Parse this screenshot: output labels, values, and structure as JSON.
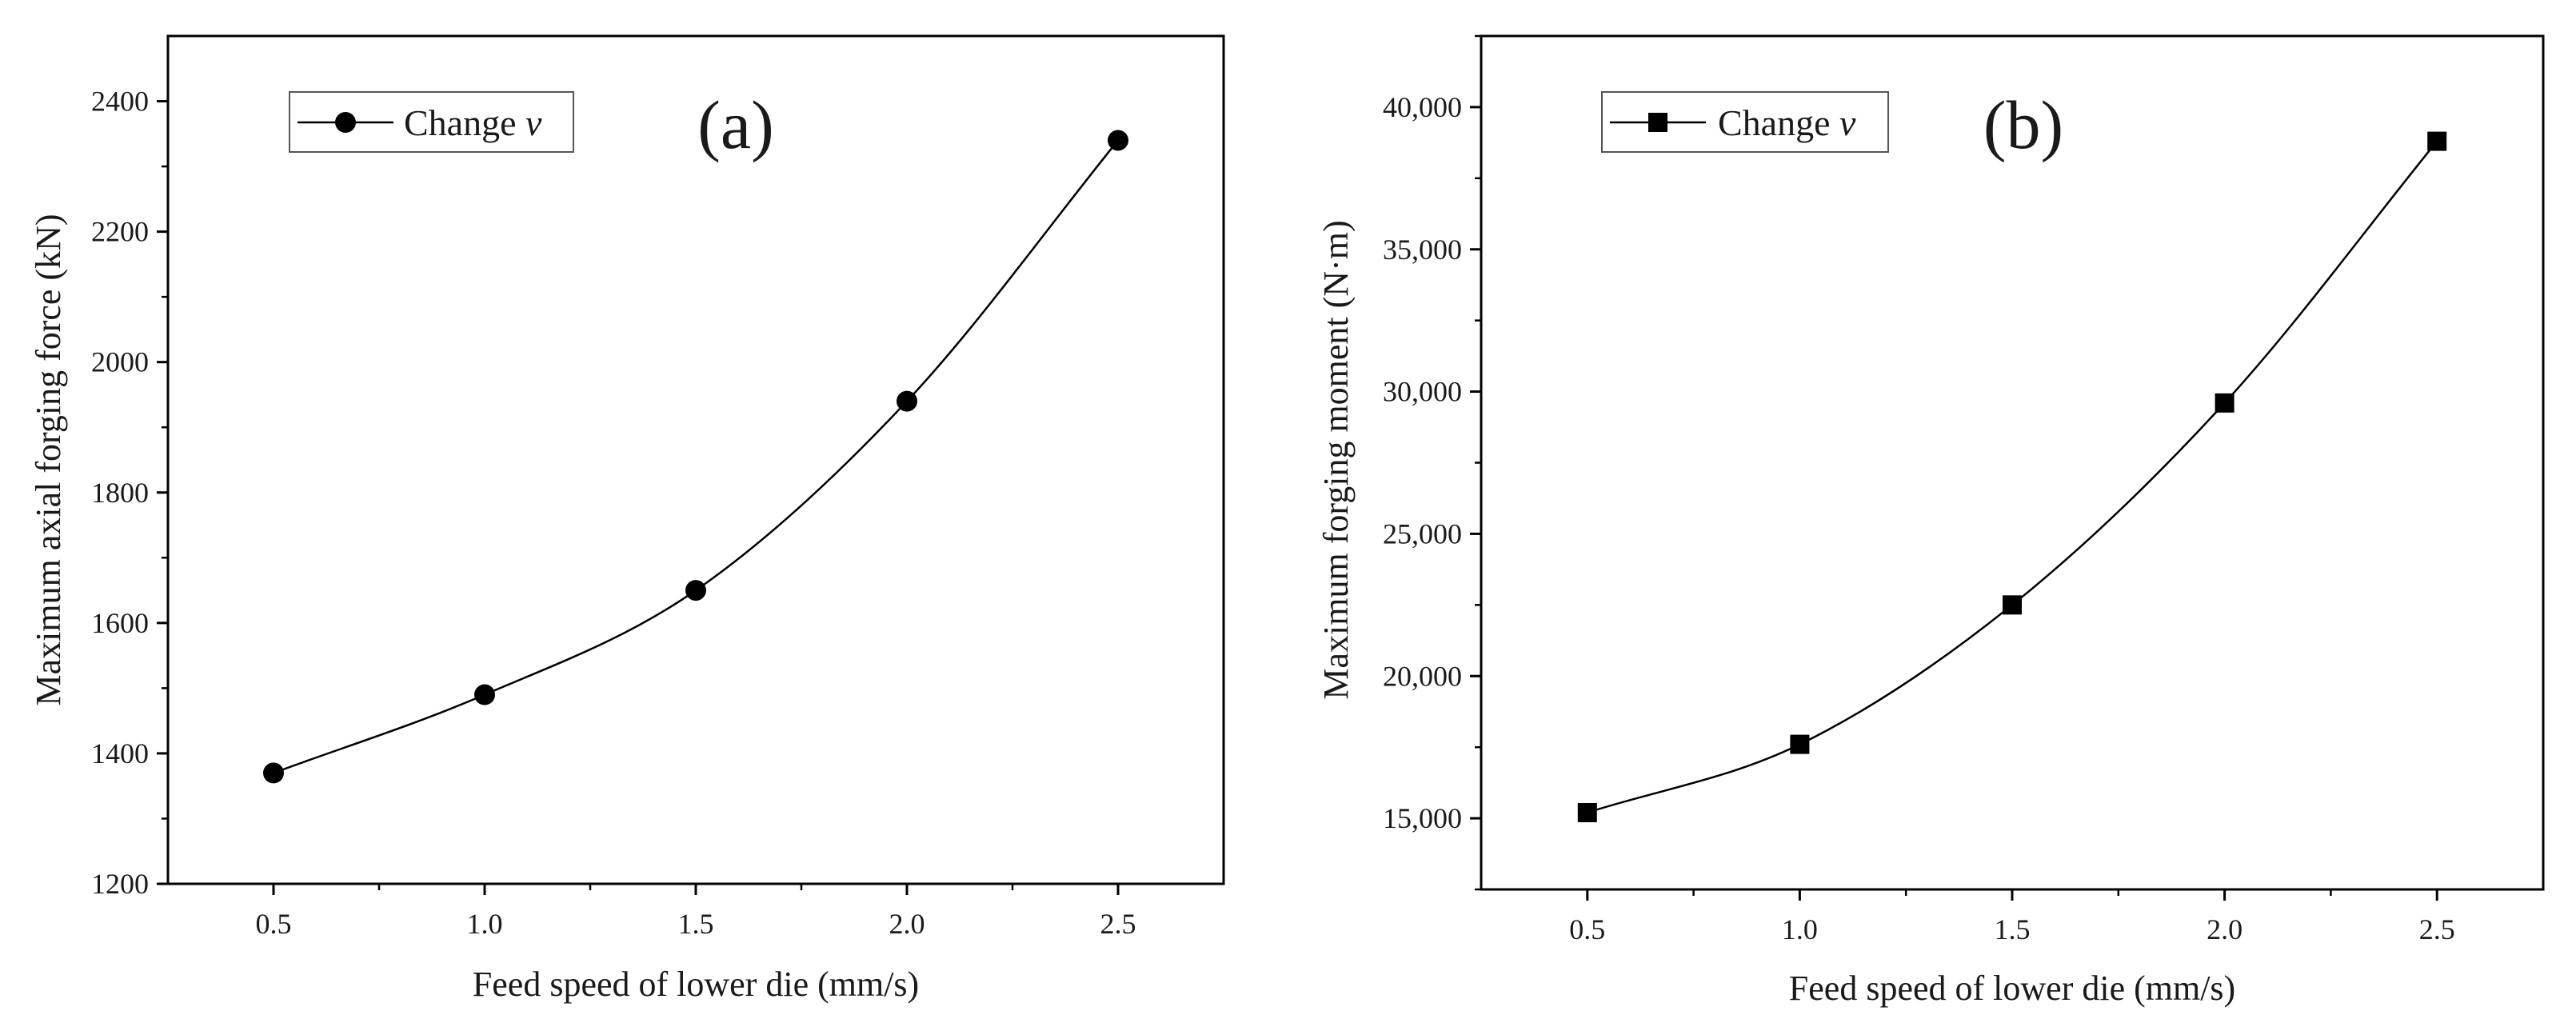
{
  "chart_data": [
    {
      "type": "line",
      "panel_label": "(a)",
      "title": "",
      "xlabel": "Feed speed of lower die (mm/s)",
      "ylabel": "Maximum axial forging force (kN)",
      "x": [
        0.5,
        1.0,
        1.5,
        2.0,
        2.5
      ],
      "x_tick_labels": [
        "0.5",
        "1.0",
        "1.5",
        "2.0",
        "2.5"
      ],
      "x_minor_ticks": [
        0.75,
        1.25,
        1.75,
        2.25
      ],
      "xlim": [
        0.25,
        2.75
      ],
      "ylim": [
        1200,
        2500
      ],
      "y_ticks": [
        1200,
        1400,
        1600,
        1800,
        2000,
        2200,
        2400
      ],
      "y_tick_labels": [
        "1200",
        "1400",
        "1600",
        "1800",
        "2000",
        "2200",
        "2400"
      ],
      "y_minor_ticks": [
        1300,
        1500,
        1700,
        1900,
        2100,
        2300
      ],
      "grid": false,
      "legend_position": "top-left",
      "series": [
        {
          "name": "Change",
          "name_variable": "v",
          "marker": "circle",
          "color": "#000000",
          "values": [
            1370,
            1490,
            1650,
            1940,
            2340
          ]
        }
      ]
    },
    {
      "type": "line",
      "panel_label": "(b)",
      "title": "",
      "xlabel": "Feed speed of lower die (mm/s)",
      "ylabel": "Maximum forging moment (N·m)",
      "x": [
        0.5,
        1.0,
        1.5,
        2.0,
        2.5
      ],
      "x_tick_labels": [
        "0.5",
        "1.0",
        "1.5",
        "2.0",
        "2.5"
      ],
      "x_minor_ticks": [
        0.75,
        1.25,
        1.75,
        2.25
      ],
      "xlim": [
        0.25,
        2.75
      ],
      "ylim": [
        12500,
        42500
      ],
      "y_ticks": [
        15000,
        20000,
        25000,
        30000,
        35000,
        40000
      ],
      "y_tick_labels": [
        "15,000",
        "20,000",
        "25,000",
        "30,000",
        "35,000",
        "40,000"
      ],
      "y_minor_ticks": [
        12500,
        17500,
        22500,
        27500,
        32500,
        37500,
        42500
      ],
      "grid": false,
      "legend_position": "top-left",
      "series": [
        {
          "name": "Change",
          "name_variable": "v",
          "marker": "square",
          "color": "#000000",
          "values": [
            15200,
            17600,
            22500,
            29600,
            38800
          ]
        }
      ]
    }
  ]
}
